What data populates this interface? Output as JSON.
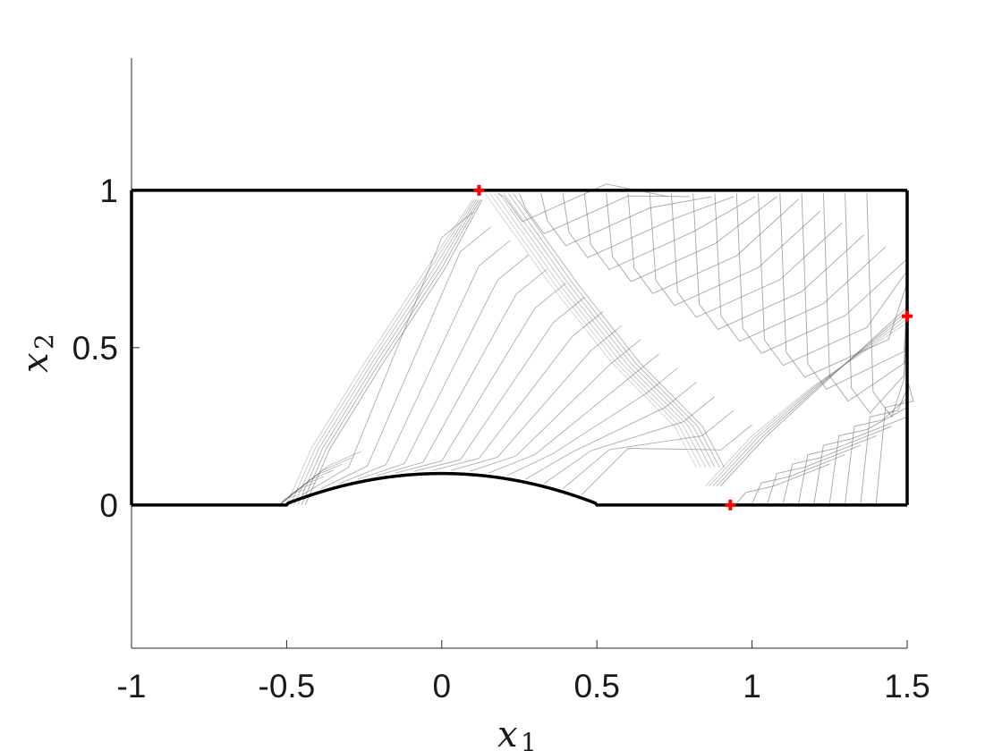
{
  "chart_data": {
    "type": "contour",
    "xlabel": "x",
    "xlabel_sub": "1",
    "ylabel": "x",
    "ylabel_sub": "2",
    "xlim": [
      -1,
      1.5
    ],
    "ylim": [
      -0.455,
      1.42
    ],
    "xticks": [
      {
        "value": -1,
        "label": "-1"
      },
      {
        "value": -0.5,
        "label": "-0.5"
      },
      {
        "value": 0,
        "label": "0"
      },
      {
        "value": 0.5,
        "label": "0.5"
      },
      {
        "value": 1,
        "label": "1"
      },
      {
        "value": 1.5,
        "label": "1.5"
      }
    ],
    "yticks": [
      {
        "value": 0,
        "label": "0"
      },
      {
        "value": 0.5,
        "label": "0.5"
      },
      {
        "value": 1,
        "label": "1"
      }
    ],
    "channel": {
      "x_min": -1,
      "x_max": 1.5,
      "y_min": 0,
      "y_max": 1
    },
    "bump": {
      "x_start": -0.5,
      "x_end": 0.5,
      "height": 0.1
    },
    "markers": [
      {
        "x": 0.12,
        "y": 1.0
      },
      {
        "x": 1.5,
        "y": 0.6
      },
      {
        "x": 0.93,
        "y": 0.0
      }
    ],
    "colors": {
      "boundary": "#000000",
      "contour": "#6b6b6b",
      "marker": "#ff0000",
      "axis": "#262626"
    },
    "grid": false
  }
}
